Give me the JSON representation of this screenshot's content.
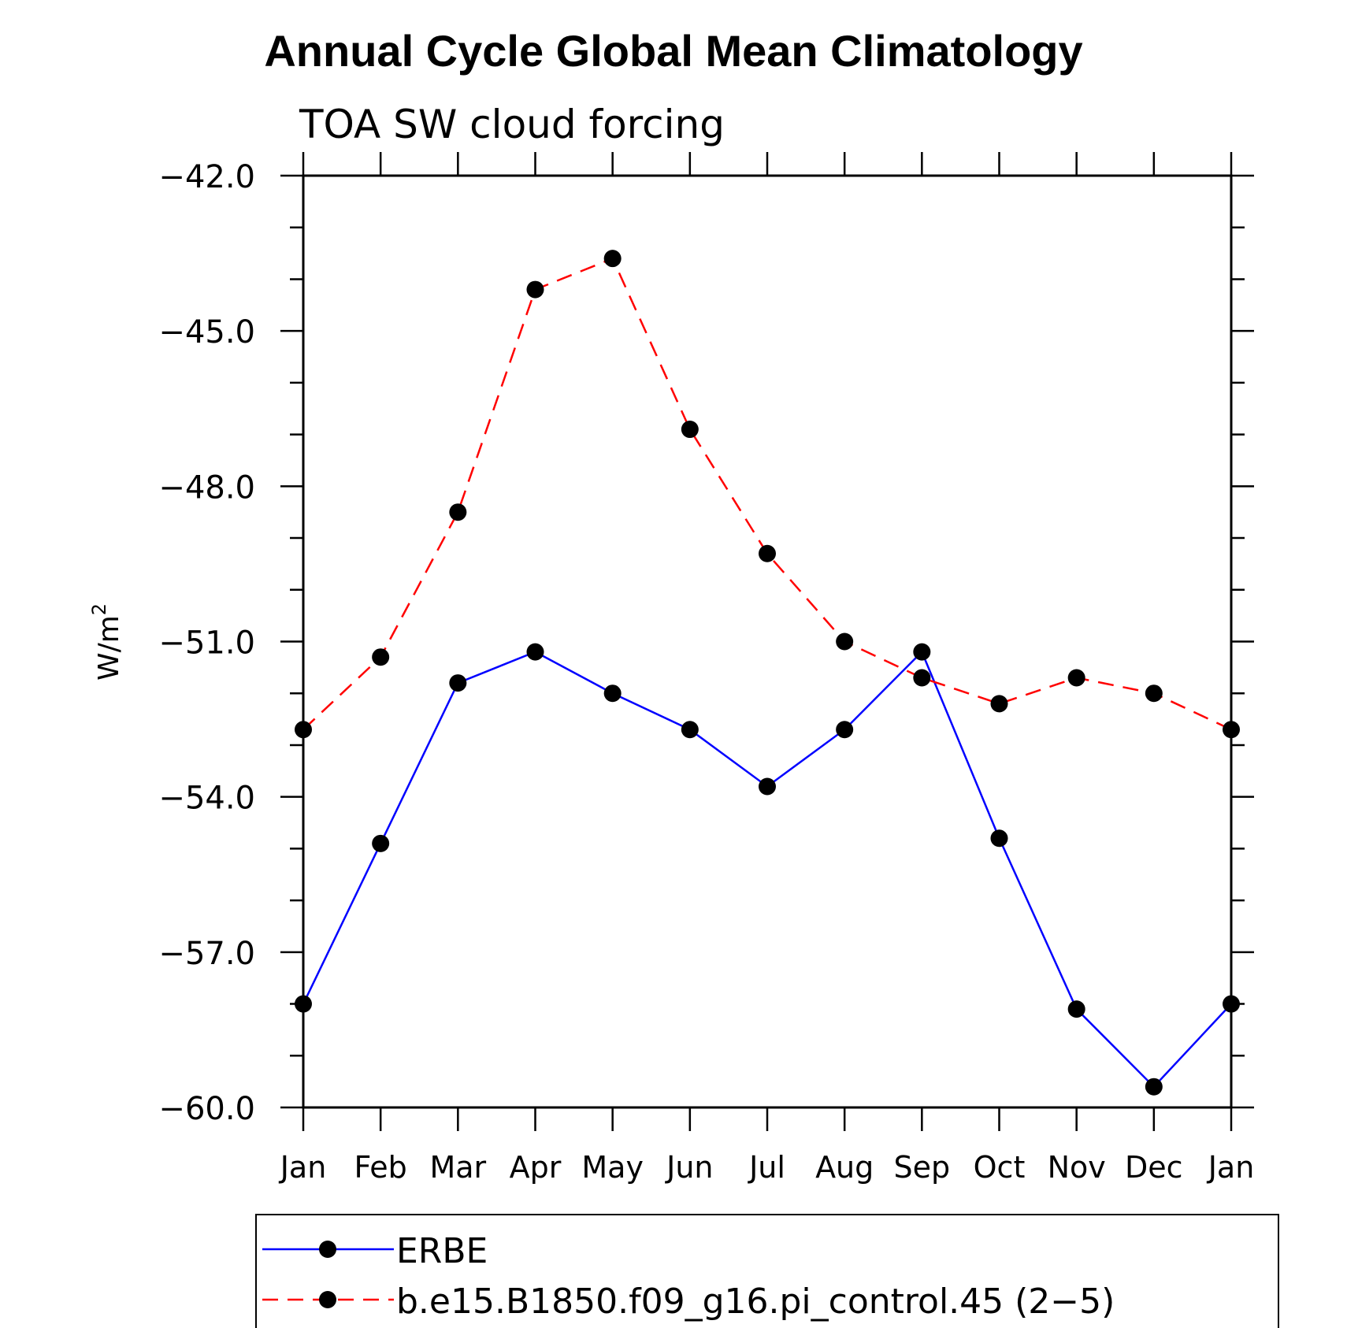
{
  "chart_data": {
    "type": "line",
    "title": "Annual Cycle Global Mean Climatology",
    "subtitle": "TOA SW cloud forcing",
    "ylabel": "W/m",
    "ylabel_superscript": "2",
    "xlabel": "",
    "categories": [
      "Jan",
      "Feb",
      "Mar",
      "Apr",
      "May",
      "Jun",
      "Jul",
      "Aug",
      "Sep",
      "Oct",
      "Nov",
      "Dec",
      "Jan"
    ],
    "ylim": [
      -60.0,
      -42.0
    ],
    "yticks": [
      "−42.0",
      "−45.0",
      "−48.0",
      "−51.0",
      "−54.0",
      "−57.0",
      "−60.0"
    ],
    "ytick_values": [
      -42,
      -45,
      -48,
      -51,
      -54,
      -57,
      -60
    ],
    "grid": false,
    "legend_position": "bottom",
    "series": [
      {
        "name": "ERBE",
        "color": "#0000ff",
        "dash": "solid",
        "marker": "filled-circle",
        "values": [
          -58.0,
          -54.9,
          -51.8,
          -51.2,
          -52.0,
          -52.7,
          -53.8,
          -52.7,
          -51.2,
          -54.8,
          -58.1,
          -59.6,
          -58.0
        ]
      },
      {
        "name": "b.e15.B1850.f09_g16.pi_control.45 (2−5)",
        "color": "#ff0000",
        "dash": "dashed",
        "marker": "filled-circle",
        "values": [
          -52.7,
          -51.3,
          -48.5,
          -44.2,
          -43.6,
          -46.9,
          -49.3,
          -51.0,
          -51.7,
          -52.2,
          -51.7,
          -52.0,
          -52.7
        ]
      }
    ]
  }
}
